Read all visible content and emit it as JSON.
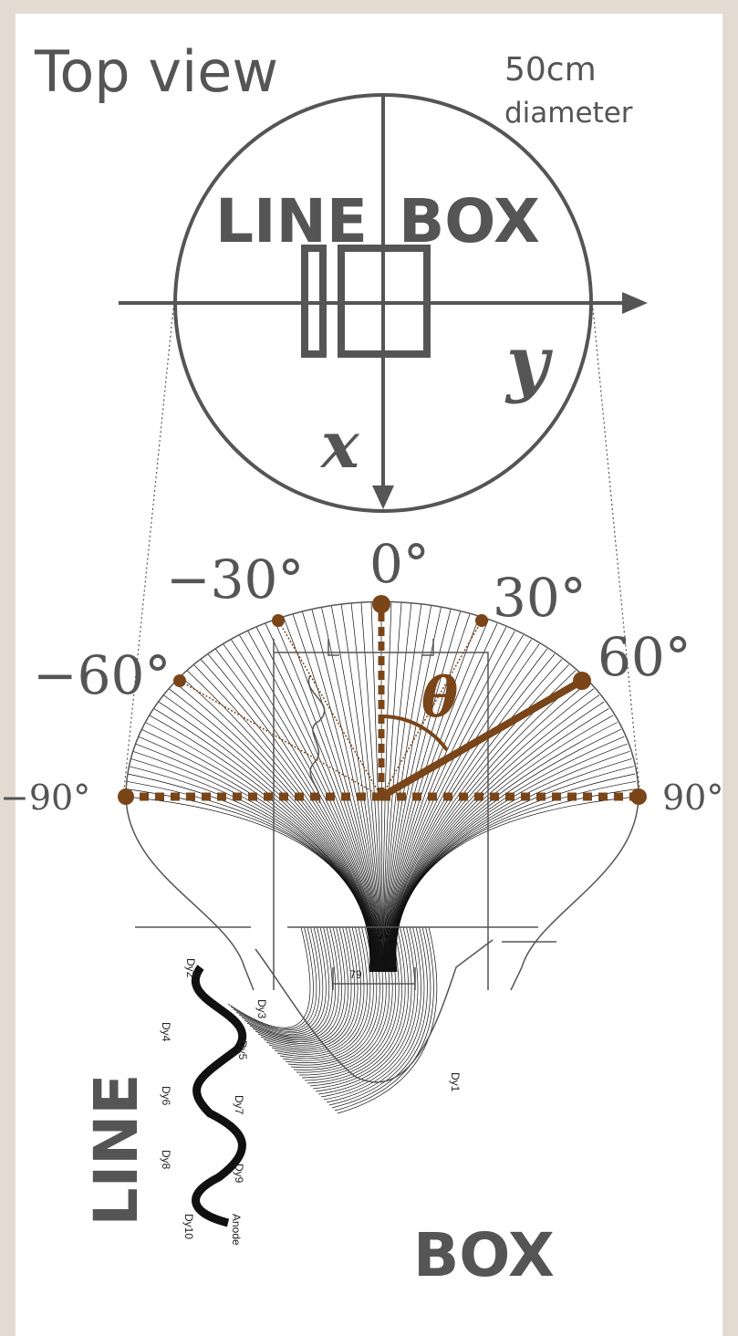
{
  "title": "Top view",
  "size": {
    "value": "50cm",
    "note": "diameter"
  },
  "top_view": {
    "left": "LINE",
    "right": "BOX",
    "y_axis": "y",
    "x_axis": "x"
  },
  "angles": {
    "a0": "0°",
    "am30": "−30°",
    "a30": "30°",
    "am60": "−60°",
    "a60": "60°",
    "am90": "−90°",
    "a90": "90°"
  },
  "theta": "θ",
  "dimension": "79",
  "dynodes": [
    "Dy1",
    "Dy2",
    "Dy3",
    "Dy4",
    "Dy5",
    "Dy6",
    "Dy7",
    "Dy8",
    "Dy9",
    "Dy10"
  ],
  "anode": "Anode",
  "bottom": {
    "left": "LINE",
    "right": "BOX"
  }
}
